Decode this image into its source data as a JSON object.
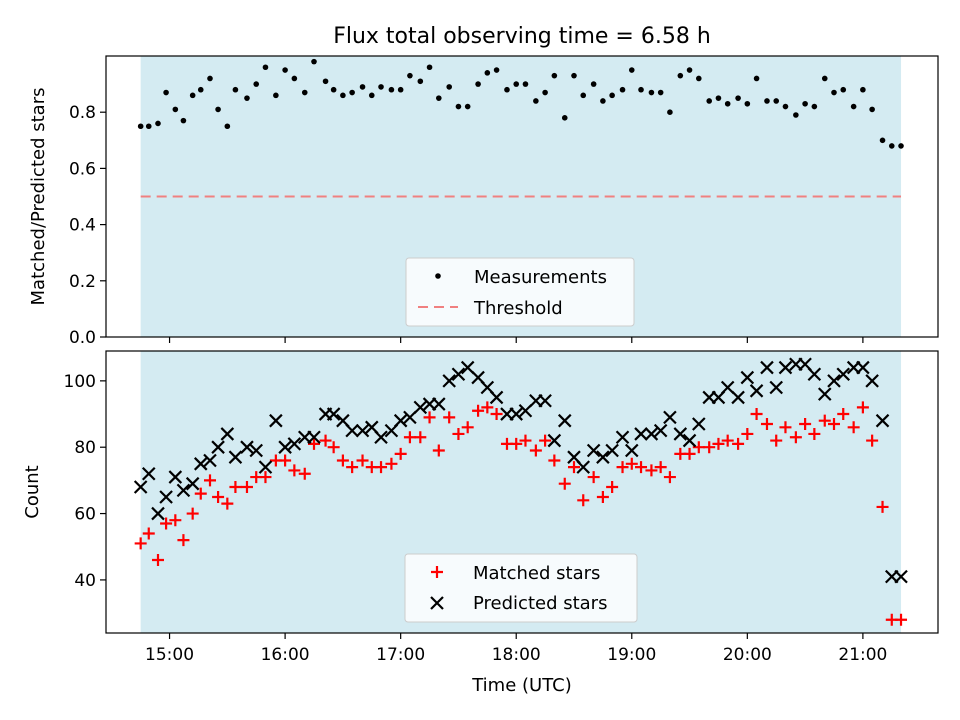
{
  "chart_data": [
    {
      "type": "scatter",
      "title": "Flux total observing time = 6.58 h",
      "ylabel": "Matched/Predicted stars",
      "xlabel": "",
      "ylim": [
        0,
        1.0
      ],
      "xlim": [
        14.45,
        21.65
      ],
      "yticks": [
        0.0,
        0.2,
        0.4,
        0.6,
        0.8
      ],
      "ytick_labels": [
        "0.0",
        "0.2",
        "0.4",
        "0.6",
        "0.8"
      ],
      "xticks": [
        15,
        16,
        17,
        18,
        19,
        20,
        21
      ],
      "shaded_span": [
        14.75,
        21.33
      ],
      "shade_color": "#add8e6",
      "threshold": 0.5,
      "legend": {
        "placement": "lower-center",
        "entries": [
          "Measurements",
          "Threshold"
        ]
      },
      "series": [
        {
          "name": "Measurements",
          "marker": "dot",
          "color": "#000000",
          "x": [
            14.75,
            14.82,
            14.9,
            14.97,
            15.05,
            15.12,
            15.2,
            15.27,
            15.35,
            15.42,
            15.5,
            15.57,
            15.67,
            15.75,
            15.83,
            15.92,
            16.0,
            16.08,
            16.17,
            16.25,
            16.35,
            16.42,
            16.5,
            16.58,
            16.67,
            16.75,
            16.83,
            16.92,
            17.0,
            17.08,
            17.17,
            17.25,
            17.33,
            17.42,
            17.5,
            17.58,
            17.67,
            17.75,
            17.83,
            17.92,
            18.0,
            18.08,
            18.17,
            18.25,
            18.33,
            18.42,
            18.5,
            18.58,
            18.67,
            18.75,
            18.83,
            18.92,
            19.0,
            19.08,
            19.17,
            19.25,
            19.33,
            19.42,
            19.5,
            19.58,
            19.67,
            19.75,
            19.83,
            19.92,
            20.0,
            20.08,
            20.17,
            20.25,
            20.33,
            20.42,
            20.5,
            20.58,
            20.67,
            20.75,
            20.83,
            20.92,
            21.0,
            21.08,
            21.17,
            21.25,
            21.33
          ],
          "y": [
            0.75,
            0.75,
            0.76,
            0.87,
            0.81,
            0.77,
            0.86,
            0.88,
            0.92,
            0.81,
            0.75,
            0.88,
            0.85,
            0.9,
            0.96,
            0.86,
            0.95,
            0.92,
            0.87,
            0.98,
            0.91,
            0.88,
            0.86,
            0.87,
            0.89,
            0.86,
            0.89,
            0.88,
            0.88,
            0.93,
            0.91,
            0.96,
            0.85,
            0.89,
            0.82,
            0.82,
            0.9,
            0.94,
            0.95,
            0.88,
            0.9,
            0.9,
            0.84,
            0.87,
            0.93,
            0.78,
            0.93,
            0.86,
            0.9,
            0.84,
            0.86,
            0.88,
            0.95,
            0.88,
            0.87,
            0.87,
            0.8,
            0.93,
            0.95,
            0.92,
            0.84,
            0.85,
            0.83,
            0.85,
            0.83,
            0.92,
            0.84,
            0.84,
            0.82,
            0.79,
            0.83,
            0.82,
            0.92,
            0.87,
            0.88,
            0.82,
            0.88,
            0.81,
            0.7,
            0.68,
            0.68
          ]
        },
        {
          "name": "Threshold",
          "style": "dashed",
          "color": "#f08080",
          "y": 0.5
        }
      ]
    },
    {
      "type": "scatter",
      "title": "",
      "ylabel": "Count",
      "xlabel": "Time (UTC)",
      "ylim": [
        24,
        109
      ],
      "xlim": [
        14.45,
        21.65
      ],
      "yticks": [
        40,
        60,
        80,
        100
      ],
      "ytick_labels": [
        "40",
        "60",
        "80",
        "100"
      ],
      "xticks": [
        15,
        16,
        17,
        18,
        19,
        20,
        21
      ],
      "xtick_labels": [
        "15:00",
        "16:00",
        "17:00",
        "18:00",
        "19:00",
        "20:00",
        "21:00"
      ],
      "shaded_span": [
        14.75,
        21.33
      ],
      "shade_color": "#add8e6",
      "legend": {
        "placement": "lower-center",
        "entries": [
          "Matched stars",
          "Predicted stars"
        ]
      },
      "series": [
        {
          "name": "Matched stars",
          "marker": "plus",
          "color": "#ff0000",
          "x": [
            14.75,
            14.82,
            14.9,
            14.97,
            15.05,
            15.12,
            15.2,
            15.27,
            15.35,
            15.42,
            15.5,
            15.57,
            15.67,
            15.75,
            15.83,
            15.92,
            16.0,
            16.08,
            16.17,
            16.25,
            16.35,
            16.42,
            16.5,
            16.58,
            16.67,
            16.75,
            16.83,
            16.92,
            17.0,
            17.08,
            17.17,
            17.25,
            17.33,
            17.42,
            17.5,
            17.58,
            17.67,
            17.75,
            17.83,
            17.92,
            18.0,
            18.08,
            18.17,
            18.25,
            18.33,
            18.42,
            18.5,
            18.58,
            18.67,
            18.75,
            18.83,
            18.92,
            19.0,
            19.08,
            19.17,
            19.25,
            19.33,
            19.42,
            19.5,
            19.58,
            19.67,
            19.75,
            19.83,
            19.92,
            20.0,
            20.08,
            20.17,
            20.25,
            20.33,
            20.42,
            20.5,
            20.58,
            20.67,
            20.75,
            20.83,
            20.92,
            21.0,
            21.08,
            21.17,
            21.25,
            21.33
          ],
          "y": [
            51,
            54,
            46,
            57,
            58,
            52,
            60,
            66,
            70,
            65,
            63,
            68,
            68,
            71,
            71,
            76,
            76,
            73,
            72,
            81,
            82,
            80,
            76,
            74,
            76,
            74,
            74,
            75,
            78,
            83,
            83,
            89,
            79,
            89,
            84,
            86,
            91,
            92,
            90,
            81,
            81,
            82,
            79,
            82,
            76,
            69,
            74,
            64,
            71,
            65,
            68,
            74,
            75,
            74,
            73,
            74,
            71,
            78,
            78,
            80,
            80,
            81,
            82,
            81,
            84,
            90,
            87,
            82,
            86,
            83,
            87,
            84,
            88,
            87,
            90,
            86,
            92,
            82,
            62,
            28,
            28
          ]
        },
        {
          "name": "Predicted stars",
          "marker": "x",
          "color": "#000000",
          "x": [
            14.75,
            14.82,
            14.9,
            14.97,
            15.05,
            15.12,
            15.2,
            15.27,
            15.35,
            15.42,
            15.5,
            15.57,
            15.67,
            15.75,
            15.83,
            15.92,
            16.0,
            16.08,
            16.17,
            16.25,
            16.35,
            16.42,
            16.5,
            16.58,
            16.67,
            16.75,
            16.83,
            16.92,
            17.0,
            17.08,
            17.17,
            17.25,
            17.33,
            17.42,
            17.5,
            17.58,
            17.67,
            17.75,
            17.83,
            17.92,
            18.0,
            18.08,
            18.17,
            18.25,
            18.33,
            18.42,
            18.5,
            18.58,
            18.67,
            18.75,
            18.83,
            18.92,
            19.0,
            19.08,
            19.17,
            19.25,
            19.33,
            19.42,
            19.5,
            19.58,
            19.67,
            19.75,
            19.83,
            19.92,
            20.0,
            20.08,
            20.17,
            20.25,
            20.33,
            20.42,
            20.5,
            20.58,
            20.67,
            20.75,
            20.83,
            20.92,
            21.0,
            21.08,
            21.17,
            21.25,
            21.33
          ],
          "y": [
            68,
            72,
            60,
            65,
            71,
            67,
            69,
            75,
            76,
            80,
            84,
            77,
            80,
            79,
            74,
            88,
            80,
            81,
            83,
            83,
            90,
            90,
            88,
            85,
            85,
            86,
            83,
            85,
            88,
            89,
            92,
            93,
            93,
            100,
            102,
            104,
            101,
            98,
            95,
            90,
            90,
            91,
            94,
            94,
            82,
            88,
            77,
            74,
            79,
            77,
            79,
            83,
            79,
            84,
            84,
            85,
            89,
            84,
            82,
            87,
            95,
            95,
            98,
            95,
            101,
            97,
            104,
            98,
            104,
            105,
            105,
            102,
            96,
            100,
            102,
            104,
            104,
            100,
            88,
            41,
            41
          ]
        }
      ]
    }
  ]
}
